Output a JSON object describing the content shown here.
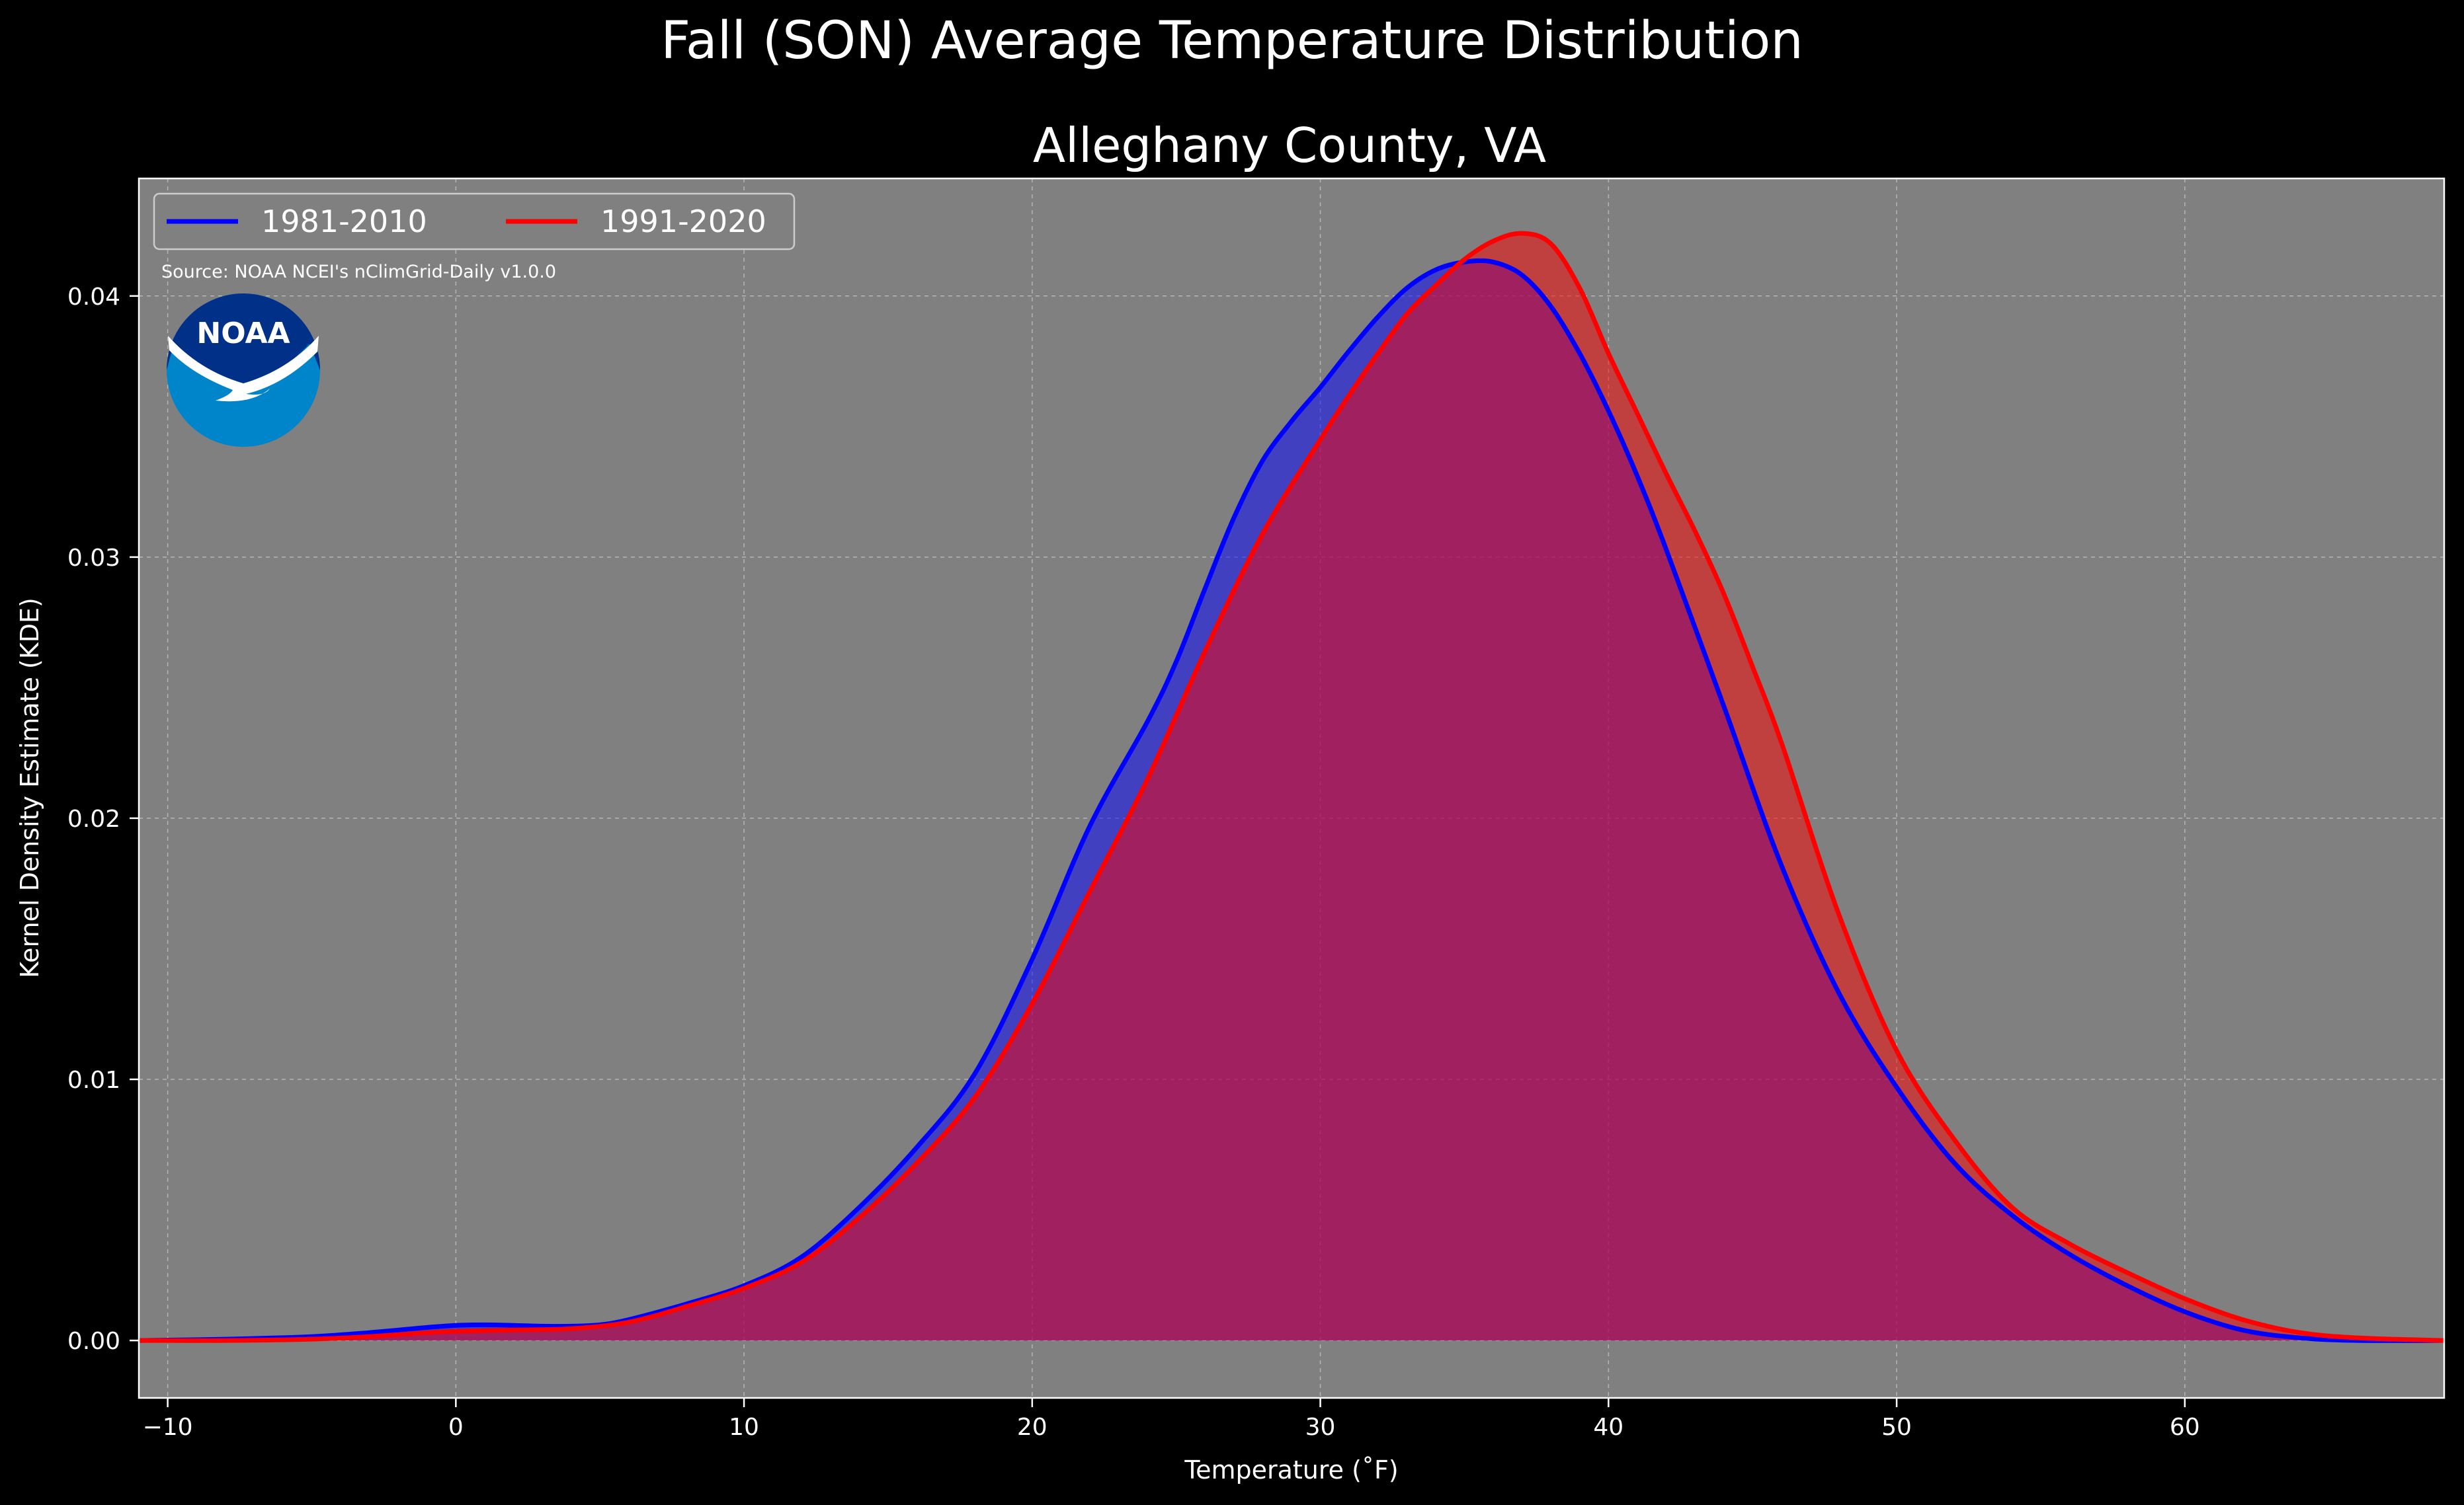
{
  "figure": {
    "title": "Fall (SON) Average Temperature Distribution",
    "subtitle": "Alleghany County, VA",
    "source": "Source: NOAA NCEI's nClimGrid-Daily v1.0.0",
    "logo_text": "NOAA",
    "colors": {
      "background": "#000000",
      "plot_background": "#808080",
      "series_1": "#0000ff",
      "series_2": "#ff0000",
      "logo_dark": "#003087",
      "logo_light": "#0085CA"
    }
  },
  "chart_data": {
    "type": "area",
    "title": "Alleghany County, VA",
    "xlabel": "Temperature (˚F)",
    "ylabel": "Kernel Density Estimate (KDE)",
    "xlim": [
      -11,
      69
    ],
    "ylim": [
      -0.0022,
      0.0445
    ],
    "xticks": [
      -10,
      0,
      10,
      20,
      30,
      40,
      50,
      60
    ],
    "xtick_labels": [
      "−10",
      "0",
      "10",
      "20",
      "30",
      "40",
      "50",
      "60"
    ],
    "yticks": [
      0.0,
      0.01,
      0.02,
      0.03,
      0.04
    ],
    "ytick_labels": [
      "0.00",
      "0.01",
      "0.02",
      "0.03",
      "0.04"
    ],
    "grid": true,
    "legend_position": "top-left",
    "series": [
      {
        "name": "1981-2010",
        "color": "#0000ff",
        "x": [
          -11,
          -8,
          -5,
          -3,
          -1,
          0,
          1,
          2,
          3,
          4,
          5,
          6,
          8,
          10,
          12,
          14,
          16,
          18,
          20,
          22,
          24,
          25,
          26,
          27,
          28,
          29,
          30,
          31,
          32,
          33,
          34,
          35,
          36,
          37,
          38,
          39,
          40,
          41,
          42,
          44,
          46,
          48,
          50,
          52,
          54,
          56,
          58,
          60,
          62,
          64,
          66,
          69
        ],
        "values": [
          0.0,
          5e-05,
          0.00015,
          0.0003,
          0.0005,
          0.00058,
          0.0006,
          0.00058,
          0.00055,
          0.00055,
          0.0006,
          0.0008,
          0.0014,
          0.0021,
          0.0032,
          0.0051,
          0.0074,
          0.0102,
          0.0146,
          0.0197,
          0.0237,
          0.026,
          0.0288,
          0.0315,
          0.0337,
          0.0352,
          0.0365,
          0.0379,
          0.0392,
          0.0403,
          0.041,
          0.0413,
          0.0413,
          0.0408,
          0.0396,
          0.0378,
          0.0356,
          0.0331,
          0.0303,
          0.0243,
          0.0182,
          0.0133,
          0.0097,
          0.0068,
          0.0048,
          0.0033,
          0.0021,
          0.0011,
          0.0004,
          0.0001,
          0.0,
          0.0
        ]
      },
      {
        "name": "1991-2020",
        "color": "#ff0000",
        "x": [
          -11,
          -8,
          -5,
          -3,
          -1,
          0,
          2,
          4,
          6,
          8,
          10,
          12,
          14,
          16,
          18,
          20,
          22,
          24,
          26,
          28,
          30,
          31,
          32,
          33,
          34,
          35,
          36,
          37,
          38,
          39,
          40,
          41,
          42,
          43,
          44,
          45,
          46,
          48,
          50,
          52,
          54,
          56,
          58,
          60,
          62,
          64,
          66,
          69
        ],
        "values": [
          0.0,
          0.0,
          5e-05,
          0.00015,
          0.0003,
          0.00035,
          0.0004,
          0.00045,
          0.0007,
          0.0013,
          0.002,
          0.003,
          0.0047,
          0.0068,
          0.0093,
          0.0129,
          0.0172,
          0.0215,
          0.0264,
          0.0309,
          0.0345,
          0.0362,
          0.0378,
          0.0393,
          0.0404,
          0.0414,
          0.0421,
          0.0424,
          0.042,
          0.0403,
          0.0378,
          0.0355,
          0.0332,
          0.031,
          0.0286,
          0.0258,
          0.0229,
          0.0163,
          0.0111,
          0.0077,
          0.0051,
          0.0037,
          0.0026,
          0.0016,
          0.0008,
          0.0003,
          0.0001,
          0.0
        ]
      }
    ]
  }
}
